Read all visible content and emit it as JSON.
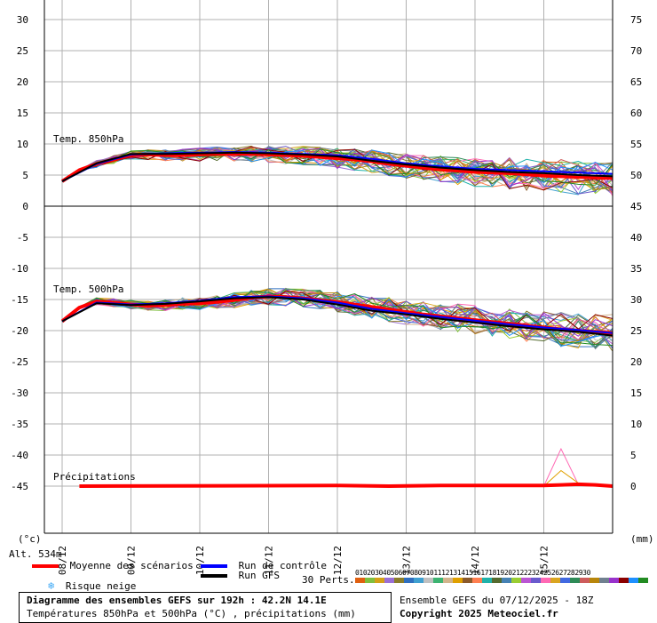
{
  "chart_data": {
    "type": "line",
    "left_axis_unit": "(°c)",
    "right_axis_unit": "(mm)",
    "left_ticks": [
      30,
      25,
      20,
      15,
      10,
      5,
      0,
      -5,
      -10,
      -15,
      -20,
      -25,
      -30,
      -35,
      -40,
      -45
    ],
    "right_ticks": [
      75,
      70,
      65,
      60,
      55,
      50,
      45,
      40,
      35,
      30,
      25,
      20,
      15,
      10,
      5,
      0
    ],
    "x_ticks": [
      "08/12",
      "09/12",
      "10/12",
      "11/12",
      "12/12",
      "13/12",
      "14/12",
      "15/12"
    ],
    "altitude_label": "Alt. 534m",
    "panel_labels": {
      "t850": "Temp. 850hPa",
      "t500": "Temp. 500hPa",
      "precip": "Précipitations"
    },
    "time_range_hours": [
      0,
      192
    ],
    "series": [
      {
        "name": "Moyenne des scénarios",
        "panel": "t850",
        "x": [
          0,
          6,
          12,
          18,
          24,
          30,
          36,
          42,
          48,
          54,
          60,
          66,
          72,
          78,
          84,
          90,
          96,
          102,
          108,
          114,
          120,
          126,
          132,
          138,
          144,
          150,
          156,
          162,
          168,
          174,
          180,
          186,
          192
        ],
        "values": [
          4,
          5.8,
          6.8,
          7.5,
          8.2,
          8.3,
          8.2,
          8.2,
          8.3,
          8.4,
          8.4,
          8.4,
          8.3,
          8.2,
          8.1,
          7.9,
          7.7,
          7.5,
          7.2,
          6.8,
          6.5,
          6.2,
          5.9,
          5.7,
          5.5,
          5.4,
          5.3,
          5.1,
          4.9,
          4.8,
          4.7,
          4.6,
          4.5
        ]
      },
      {
        "name": "Moyenne des scénarios",
        "panel": "t500",
        "x": [
          0,
          6,
          12,
          18,
          24,
          30,
          36,
          42,
          48,
          54,
          60,
          66,
          72,
          78,
          84,
          90,
          96,
          102,
          108,
          114,
          120,
          126,
          132,
          138,
          144,
          150,
          156,
          162,
          168,
          174,
          180,
          186,
          192
        ],
        "values": [
          -18.5,
          -16.3,
          -15.3,
          -15.5,
          -15.8,
          -16,
          -15.9,
          -15.7,
          -15.6,
          -15.4,
          -15.1,
          -14.7,
          -14.5,
          -14.6,
          -14.8,
          -15.1,
          -15.4,
          -15.8,
          -16.2,
          -16.6,
          -17,
          -17.4,
          -17.7,
          -18,
          -18.3,
          -18.6,
          -18.9,
          -19.2,
          -19.5,
          -19.8,
          -20,
          -20.2,
          -20.4
        ]
      },
      {
        "name": "Moyenne des scénarios",
        "panel": "precip",
        "x": [
          6,
          96,
          114,
          132,
          150,
          168,
          174,
          180,
          186,
          192
        ],
        "values": [
          0,
          0.1,
          0,
          0.1,
          0.1,
          0.1,
          0.2,
          0.3,
          0.2,
          0
        ]
      },
      {
        "name": "Run de contrôle",
        "panel": "t850",
        "x": [
          0,
          12,
          24,
          36,
          48,
          60,
          72,
          84,
          96,
          108,
          120,
          132,
          144,
          156,
          168,
          180,
          192
        ],
        "values": [
          4,
          6.8,
          8.3,
          8.5,
          8.6,
          8.7,
          8.6,
          8.4,
          8.2,
          7.6,
          6.9,
          6.4,
          6.0,
          5.8,
          5.6,
          5.4,
          5.2
        ]
      },
      {
        "name": "Run de contrôle",
        "panel": "t500",
        "x": [
          0,
          12,
          24,
          36,
          48,
          60,
          72,
          84,
          96,
          108,
          120,
          132,
          144,
          156,
          168,
          180,
          192
        ],
        "values": [
          -18.5,
          -15.5,
          -15.8,
          -15.6,
          -15.2,
          -14.6,
          -14.5,
          -14.8,
          -15.5,
          -16.5,
          -17.2,
          -17.8,
          -18.4,
          -19,
          -19.5,
          -19.9,
          -20.4
        ]
      },
      {
        "name": "Run GFS",
        "panel": "t850",
        "x": [
          0,
          12,
          24,
          36,
          48,
          60,
          72,
          84,
          96,
          108,
          120,
          132,
          144,
          156,
          168,
          180,
          192
        ],
        "values": [
          4,
          6.9,
          8.4,
          8.4,
          8.5,
          8.6,
          8.5,
          8.3,
          8.0,
          7.3,
          6.7,
          6.2,
          5.8,
          5.5,
          5.3,
          5.0,
          4.8
        ]
      },
      {
        "name": "Run GFS",
        "panel": "t500",
        "x": [
          0,
          12,
          24,
          36,
          48,
          60,
          72,
          84,
          96,
          108,
          120,
          132,
          144,
          156,
          168,
          180,
          192
        ],
        "values": [
          -18.5,
          -15.6,
          -15.9,
          -15.7,
          -15.3,
          -14.8,
          -14.6,
          -15,
          -15.8,
          -16.8,
          -17.4,
          -18.1,
          -18.7,
          -19.3,
          -19.8,
          -20.2,
          -20.8
        ]
      }
    ],
    "legend": [
      "Moyenne des scénarios",
      "Run de contrôle",
      "Run GFS",
      "Risque neige"
    ],
    "perturbations_label": "30 Perts.",
    "perturbation_numbers": [
      "01",
      "02",
      "03",
      "04",
      "05",
      "06",
      "07",
      "08",
      "09",
      "10",
      "11",
      "12",
      "13",
      "14",
      "15",
      "16",
      "17",
      "18",
      "19",
      "20",
      "21",
      "22",
      "23",
      "24",
      "25",
      "26",
      "27",
      "28",
      "29",
      "30"
    ],
    "perturbation_colors": [
      "#e06010",
      "#7fbf3f",
      "#d4a017",
      "#9a6fd6",
      "#8b7d2a",
      "#2f6fbf",
      "#3fa0d0",
      "#c0c0c0",
      "#3cb371",
      "#d2b48c",
      "#e0a000",
      "#8b5a2b",
      "#ff7f50",
      "#20b2aa",
      "#556b2f",
      "#4682b4",
      "#9acd32",
      "#ba55d3",
      "#6a5acd",
      "#ff69b4",
      "#daa520",
      "#4169e1",
      "#2e8b57",
      "#cd5c5c",
      "#b8860b",
      "#708090",
      "#9932cc",
      "#8b0000",
      "#1e90ff",
      "#228b22"
    ]
  },
  "footer": {
    "title": "Diagramme des ensembles GEFS sur 192h : 42.2N 14.1E",
    "subtitle": "Températures 850hPa et 500hPa (°C) , précipitations (mm)",
    "run_info": "Ensemble GEFS du 07/12/2025 - 18Z",
    "copyright": "Copyright 2025 Meteociel.fr"
  },
  "colors": {
    "mean": "#ff0000",
    "control": "#0000ff",
    "gfs": "#000000",
    "grid": "#b0b0b0",
    "snow": "#3fa9f5"
  }
}
